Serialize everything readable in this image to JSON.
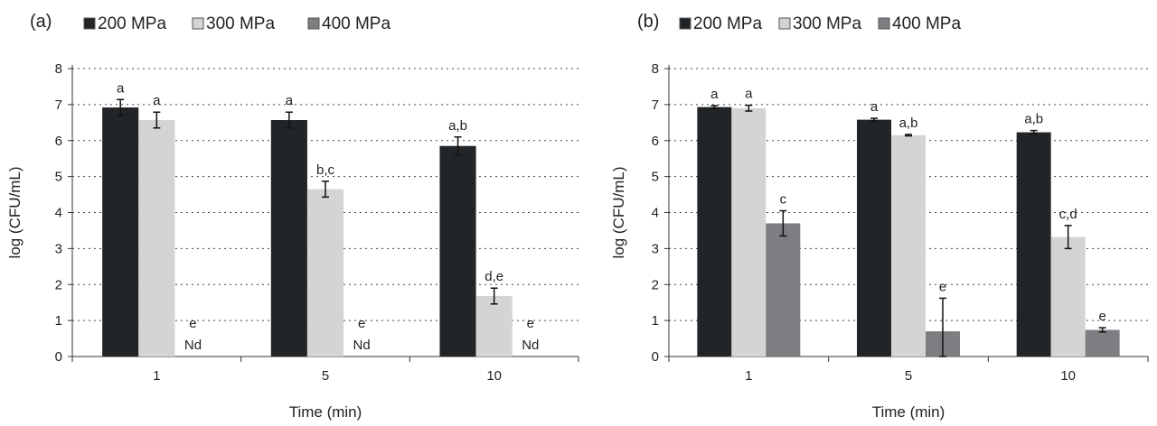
{
  "chart_data": [
    {
      "type": "bar",
      "panel_label": "(a)",
      "categories": [
        "1",
        "5",
        "10"
      ],
      "xlabel": "Time (min)",
      "ylabel": "log (CFU/mL)",
      "ylim": [
        0,
        8
      ],
      "yticks": [
        "0",
        "1",
        "2",
        "3",
        "4",
        "5",
        "6",
        "7",
        "8"
      ],
      "grid": "horizontal dotted",
      "legend": "top",
      "series": [
        {
          "name": "200 MPa",
          "color": "#222528",
          "values": [
            6.92,
            6.57,
            5.85
          ],
          "errors": [
            0.22,
            0.22,
            0.25
          ],
          "letters": [
            "a",
            "a",
            "a,b"
          ],
          "nd": [
            "",
            "",
            ""
          ]
        },
        {
          "name": "300 MPa",
          "color": "#d4d4d4",
          "values": [
            6.57,
            4.65,
            1.68
          ],
          "errors": [
            0.22,
            0.22,
            0.22
          ],
          "letters": [
            "a",
            "b,c",
            "d,e"
          ],
          "nd": [
            "",
            "",
            ""
          ]
        },
        {
          "name": "400 MPa",
          "color": "#7c7e81",
          "values": [
            null,
            null,
            null
          ],
          "errors": [
            0,
            0,
            0
          ],
          "letters": [
            "e",
            "e",
            "e"
          ],
          "nd": [
            "Nd",
            "Nd",
            "Nd"
          ]
        }
      ]
    },
    {
      "type": "bar",
      "panel_label": "(b)",
      "categories": [
        "1",
        "5",
        "10"
      ],
      "xlabel": "Time (min)",
      "ylabel": "log (CFU/mL)",
      "ylim": [
        0,
        8
      ],
      "yticks": [
        "0",
        "1",
        "2",
        "3",
        "4",
        "5",
        "6",
        "7",
        "8"
      ],
      "grid": "horizontal dotted",
      "legend": "top",
      "series": [
        {
          "name": "200 MPa",
          "color": "#222528",
          "values": [
            6.93,
            6.58,
            6.23
          ],
          "errors": [
            0.04,
            0.04,
            0.05
          ],
          "letters": [
            "a",
            "a",
            "a,b"
          ],
          "nd": [
            "",
            "",
            ""
          ]
        },
        {
          "name": "300 MPa",
          "color": "#d4d4d4",
          "values": [
            6.9,
            6.15,
            3.32
          ],
          "errors": [
            0.08,
            0.02,
            0.32
          ],
          "letters": [
            "a",
            "a,b",
            "c,d"
          ],
          "nd": [
            "",
            "",
            ""
          ]
        },
        {
          "name": "400 MPa",
          "color": "#7c7e81",
          "values": [
            3.7,
            0.7,
            0.74
          ],
          "errors": [
            0.35,
            0.92,
            0.06
          ],
          "letters": [
            "c",
            "e",
            "e"
          ],
          "nd": [
            "",
            "",
            ""
          ]
        }
      ]
    }
  ]
}
